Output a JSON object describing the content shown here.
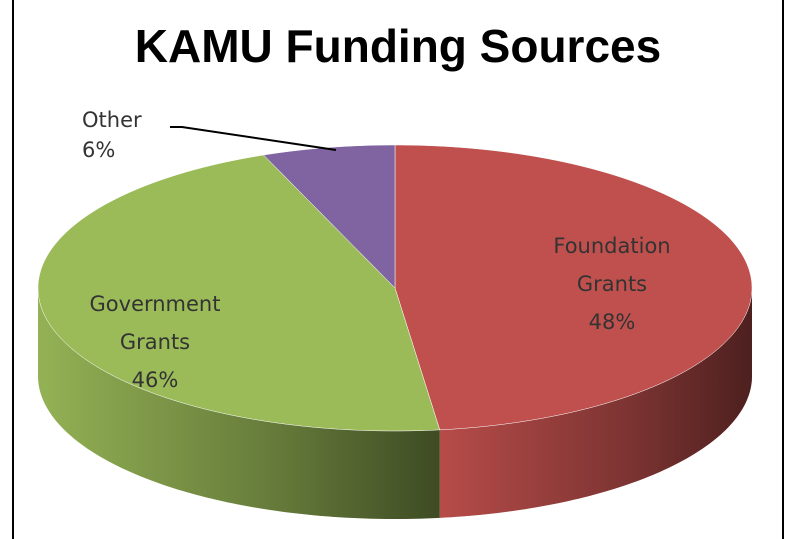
{
  "chart_data": {
    "type": "pie",
    "title": "KAMU Funding Sources",
    "categories": [
      "Foundation Grants",
      "Government Grants",
      "Other"
    ],
    "values": [
      48,
      46,
      6
    ],
    "value_labels": [
      "48%",
      "46%",
      "6%"
    ],
    "colors": [
      "#c0504d",
      "#9bbb59",
      "#8064a2"
    ]
  }
}
